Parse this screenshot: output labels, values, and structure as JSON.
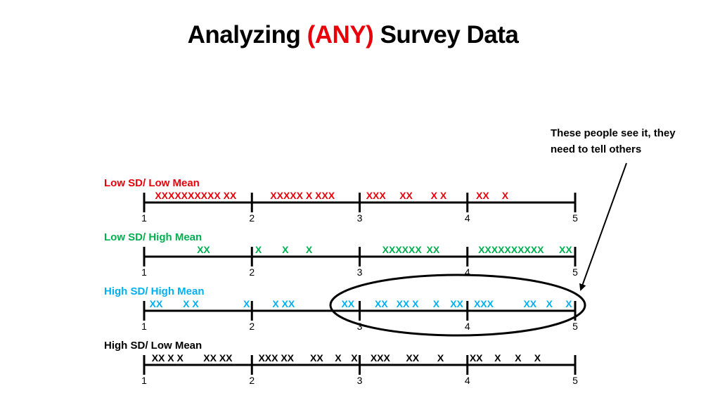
{
  "title": {
    "part1": "Analyzing ",
    "highlight": "(ANY)",
    "part2": " Survey Data"
  },
  "colors": {
    "title_highlight": "#e8000b",
    "low_sd_low_mean": "#e8000b",
    "low_sd_high_mean": "#00b050",
    "high_sd_high_mean": "#00b0f0",
    "high_sd_low_mean": "#000000",
    "axis": "#000000"
  },
  "scale_labels": [
    "1",
    "2",
    "3",
    "4",
    "5"
  ],
  "rows": [
    {
      "label": "Low SD/ Low Mean",
      "color_key": "low_sd_low_mean",
      "segments": [
        {
          "text": "XXXXXXXXXX XX",
          "at": 1.1
        },
        {
          "text": "XXXXX X XXX",
          "at": 2.17
        },
        {
          "text": "XXX",
          "at": 3.06
        },
        {
          "text": "XX",
          "at": 3.37
        },
        {
          "text": "X X",
          "at": 3.66
        },
        {
          "text": "XX",
          "at": 4.08
        },
        {
          "text": "X",
          "at": 4.32
        }
      ]
    },
    {
      "label": "Low SD/ High Mean",
      "color_key": "low_sd_high_mean",
      "segments": [
        {
          "text": "XX",
          "at": 1.49
        },
        {
          "text": "X",
          "at": 2.03
        },
        {
          "text": "X",
          "at": 2.28
        },
        {
          "text": "X",
          "at": 2.5
        },
        {
          "text": "XXXXXX",
          "at": 3.21
        },
        {
          "text": "XX",
          "at": 3.62
        },
        {
          "text": "XXXXXXXXXX",
          "at": 4.1
        },
        {
          "text": "XX",
          "at": 4.85
        }
      ]
    },
    {
      "label": "High SD/ High Mean",
      "color_key": "high_sd_high_mean",
      "segments": [
        {
          "text": "XX",
          "at": 1.05
        },
        {
          "text": "X X",
          "at": 1.36
        },
        {
          "text": "X",
          "at": 1.92
        },
        {
          "text": "X XX",
          "at": 2.19
        },
        {
          "text": "XX",
          "at": 2.83
        },
        {
          "text": "XX",
          "at": 3.14
        },
        {
          "text": "XX X",
          "at": 3.34
        },
        {
          "text": "X",
          "at": 3.68
        },
        {
          "text": "XX",
          "at": 3.84
        },
        {
          "text": "XXX",
          "at": 4.06
        },
        {
          "text": "XX",
          "at": 4.52
        },
        {
          "text": "X",
          "at": 4.73
        },
        {
          "text": "X",
          "at": 4.91
        }
      ]
    },
    {
      "label": "High SD/ Low Mean",
      "color_key": "high_sd_low_mean",
      "segments": [
        {
          "text": "XX X X",
          "at": 1.07
        },
        {
          "text": "XX XX",
          "at": 1.55
        },
        {
          "text": "XXX XX",
          "at": 2.06
        },
        {
          "text": "XX",
          "at": 2.54
        },
        {
          "text": "X",
          "at": 2.77
        },
        {
          "text": "X",
          "at": 2.92
        },
        {
          "text": "XXX",
          "at": 3.1
        },
        {
          "text": "XX",
          "at": 3.43
        },
        {
          "text": "X",
          "at": 3.72
        },
        {
          "text": "XX",
          "at": 4.02
        },
        {
          "text": "X",
          "at": 4.25
        },
        {
          "text": "X",
          "at": 4.44
        },
        {
          "text": "X",
          "at": 4.62
        }
      ]
    }
  ],
  "annotation": {
    "lines": [
      "These people see it, they",
      "need to tell others"
    ]
  }
}
